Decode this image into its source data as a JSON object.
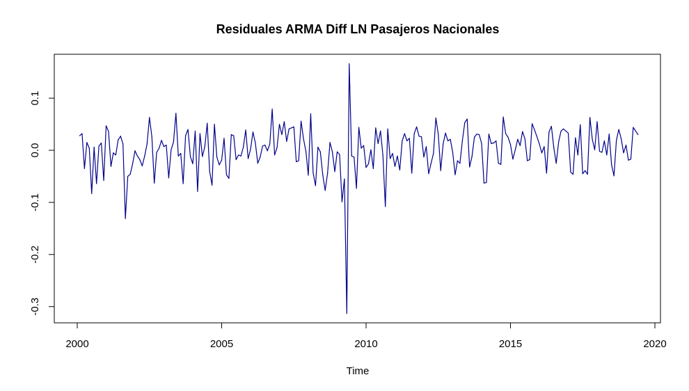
{
  "chart_data": {
    "type": "line",
    "title": "Residuales ARMA Diff LN Pasajeros Nacionales",
    "xlabel": "Time",
    "ylabel": "",
    "xlim": [
      2000,
      2020
    ],
    "ylim": [
      -0.33,
      0.18
    ],
    "xticks": [
      2000,
      2005,
      2010,
      2015,
      2020
    ],
    "xtick_labels": [
      "2000",
      "2005",
      "2010",
      "2015",
      "2020"
    ],
    "yticks": [
      -0.3,
      -0.2,
      -0.1,
      0.0,
      0.1
    ],
    "ytick_labels": [
      "-0.3",
      "-0.2",
      "-0.1",
      "0.0",
      "0.1"
    ],
    "line_color": "#00008b",
    "series": [
      {
        "name": "residuals",
        "start": 2000.0833,
        "frequency": 12,
        "values": [
          0.028,
          0.032,
          -0.035,
          0.015,
          0.004,
          -0.083,
          0.006,
          -0.064,
          0.008,
          0.014,
          -0.058,
          0.047,
          0.036,
          -0.031,
          -0.005,
          -0.009,
          0.02,
          0.027,
          0.012,
          -0.131,
          -0.05,
          -0.046,
          -0.026,
          -0.001,
          -0.011,
          -0.018,
          -0.03,
          -0.011,
          0.012,
          0.063,
          0.026,
          -0.063,
          -0.004,
          0.004,
          0.019,
          0.007,
          0.01,
          -0.053,
          0.001,
          0.016,
          0.071,
          -0.011,
          -0.006,
          -0.064,
          0.028,
          0.04,
          -0.012,
          -0.026,
          0.037,
          -0.079,
          0.032,
          -0.012,
          0.007,
          0.052,
          -0.04,
          -0.067,
          0.05,
          -0.013,
          -0.028,
          -0.019,
          0.023,
          -0.047,
          -0.054,
          0.03,
          0.028,
          -0.018,
          -0.009,
          -0.011,
          0.006,
          0.039,
          -0.016,
          0.002,
          0.035,
          0.014,
          -0.025,
          -0.013,
          0.008,
          0.01,
          -0.001,
          0.012,
          0.079,
          -0.009,
          0.005,
          0.05,
          0.03,
          0.055,
          0.017,
          0.041,
          0.043,
          0.045,
          -0.022,
          -0.02,
          0.056,
          0.022,
          -0.002,
          -0.048,
          0.07,
          -0.043,
          -0.068,
          0.006,
          -0.003,
          -0.047,
          -0.077,
          -0.044,
          0.015,
          -0.003,
          -0.041,
          -0.003,
          -0.008,
          -0.099,
          -0.055,
          -0.313,
          0.166,
          -0.011,
          -0.013,
          -0.073,
          0.044,
          0.004,
          0.009,
          -0.033,
          -0.026,
          0.001,
          -0.035,
          0.043,
          0.013,
          0.037,
          -0.01,
          -0.108,
          0.041,
          -0.016,
          -0.006,
          -0.031,
          -0.011,
          -0.038,
          0.018,
          0.032,
          0.018,
          0.023,
          -0.044,
          0.032,
          0.045,
          0.027,
          0.026,
          -0.013,
          0.007,
          -0.045,
          -0.025,
          -0.006,
          0.062,
          0.031,
          -0.039,
          0.012,
          0.033,
          0.018,
          0.021,
          -0.004,
          -0.047,
          -0.02,
          -0.025,
          0.018,
          0.053,
          0.06,
          -0.032,
          -0.012,
          0.025,
          0.031,
          0.03,
          0.013,
          -0.063,
          -0.062,
          0.031,
          0.013,
          0.014,
          0.018,
          -0.025,
          -0.027,
          0.064,
          0.032,
          0.025,
          0.011,
          -0.017,
          0.001,
          0.021,
          0.009,
          0.036,
          0.022,
          -0.02,
          -0.018,
          0.051,
          0.039,
          0.026,
          0.012,
          -0.005,
          0.007,
          -0.044,
          0.035,
          0.046,
          0.005,
          -0.025,
          0.016,
          0.037,
          0.041,
          0.037,
          0.033,
          -0.042,
          -0.046,
          0.024,
          -0.009,
          0.049,
          -0.045,
          -0.039,
          -0.046,
          0.063,
          0.021,
          0.001,
          0.055,
          -0.002,
          -0.004,
          0.018,
          -0.009,
          0.031,
          -0.028,
          -0.049,
          0.019,
          0.04,
          0.022,
          -0.005,
          0.01,
          -0.019,
          -0.017,
          0.044,
          0.037,
          0.03
        ]
      }
    ]
  }
}
